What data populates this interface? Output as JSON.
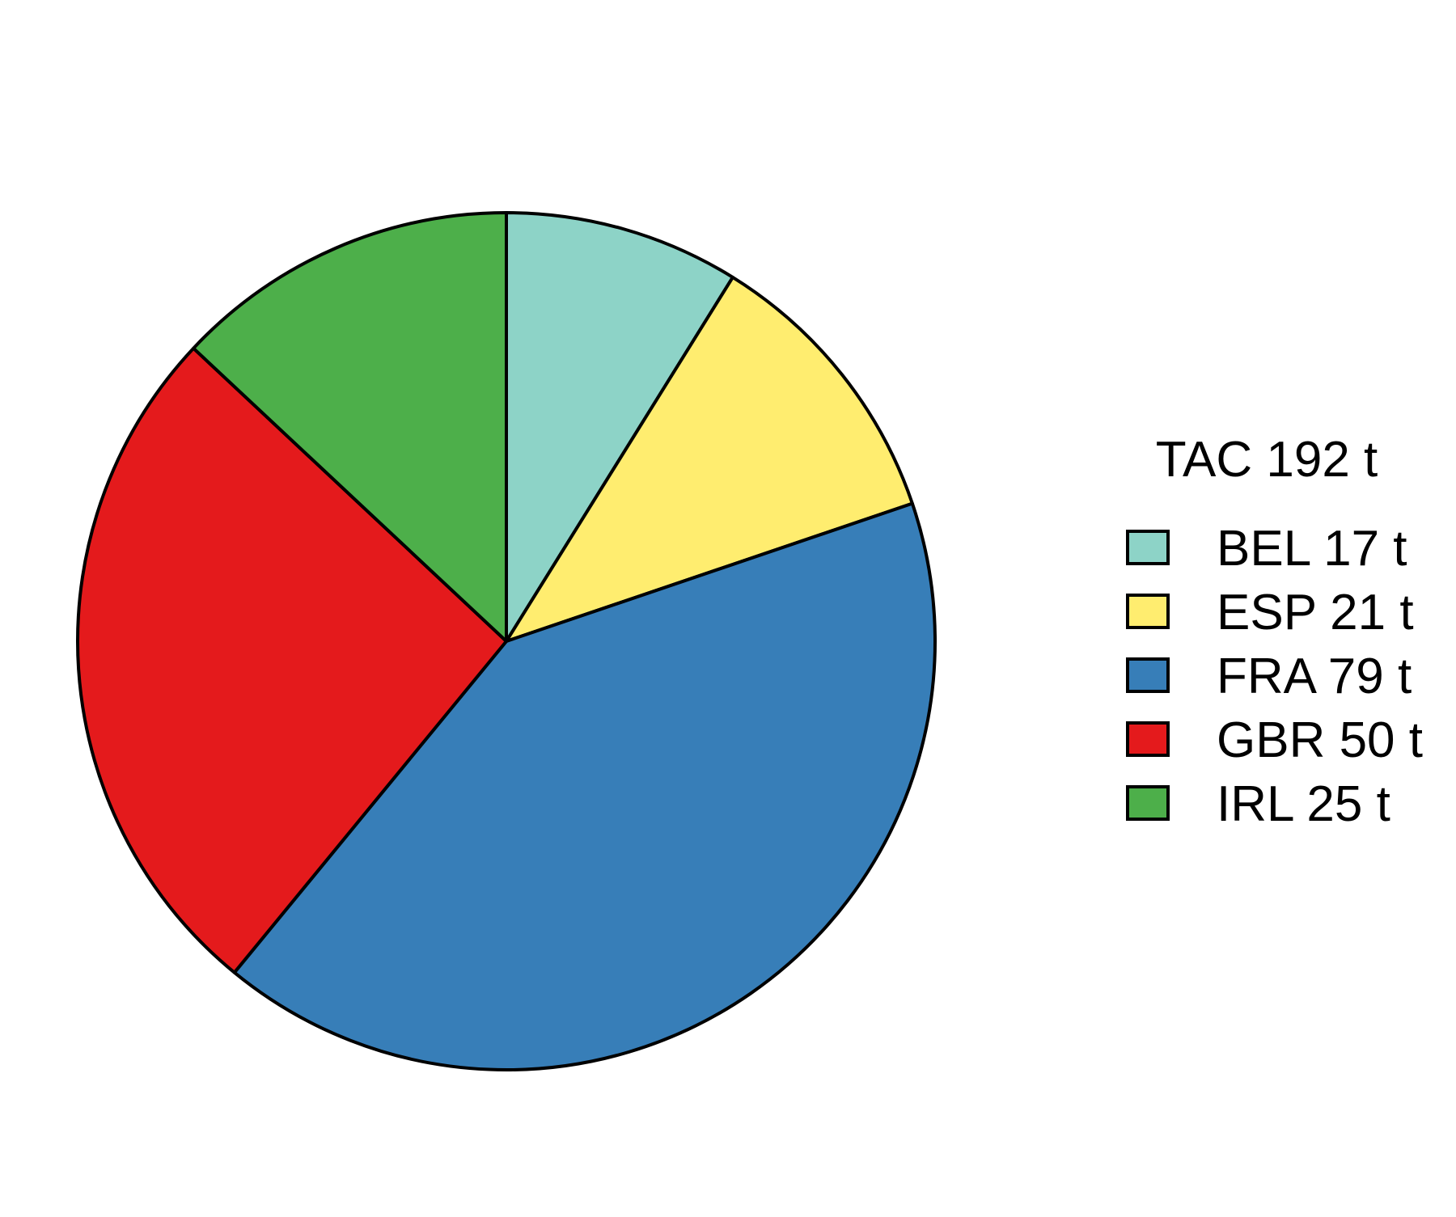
{
  "chart_data": {
    "type": "pie",
    "legend_title": "TAC 192 t",
    "legend_position": "right",
    "slices": [
      {
        "label": "BEL 17 t",
        "category": "BEL",
        "value": 17,
        "color": "#8DD3C7"
      },
      {
        "label": "ESP 21 t",
        "category": "ESP",
        "value": 21,
        "color": "#FFED6F"
      },
      {
        "label": "FRA 79 t",
        "category": "FRA",
        "value": 79,
        "color": "#377EB8"
      },
      {
        "label": "GBR 50 t",
        "category": "GBR",
        "value": 50,
        "color": "#E41A1C"
      },
      {
        "label": "IRL 25 t",
        "category": "IRL",
        "value": 25,
        "color": "#4DAF4A"
      }
    ],
    "start_angle": "top",
    "direction": "clockwise"
  }
}
